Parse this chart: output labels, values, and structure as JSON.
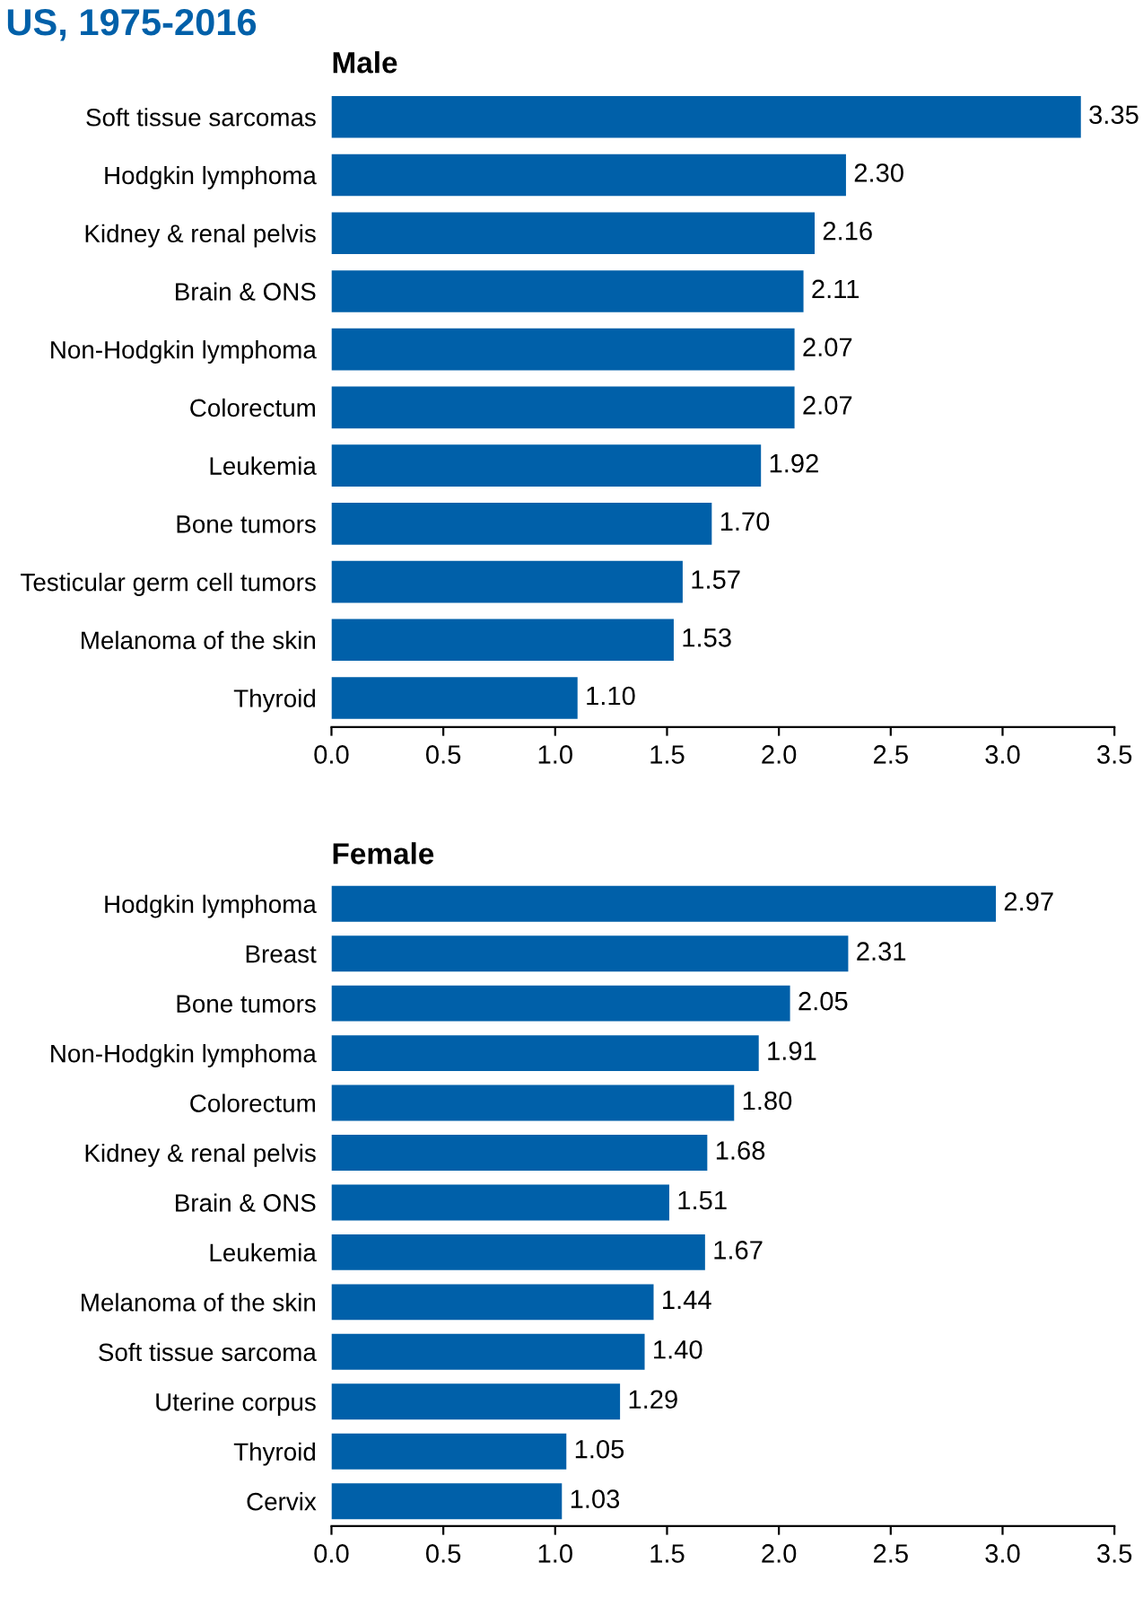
{
  "chart_data": [
    {
      "type": "bar",
      "orientation": "horizontal",
      "title": "US, 1975-2016",
      "subtitle": "Male",
      "categories": [
        "Soft tissue sarcomas",
        "Hodgkin lymphoma",
        "Kidney & renal pelvis",
        "Brain & ONS",
        "Non-Hodgkin lymphoma",
        "Colorectum",
        "Leukemia",
        "Bone tumors",
        "Testicular germ cell tumors",
        "Melanoma of the skin",
        "Thyroid"
      ],
      "values": [
        3.35,
        2.3,
        2.16,
        2.11,
        2.07,
        2.07,
        1.92,
        1.7,
        1.57,
        1.53,
        1.1
      ],
      "value_labels": [
        "3.35",
        "2.30",
        "2.16",
        "2.11",
        "2.07",
        "2.07",
        "1.92",
        "1.70",
        "1.57",
        "1.53",
        "1.10"
      ],
      "color": "#0060a9",
      "xlim": [
        0,
        3.5
      ],
      "xticks": [
        {
          "value": 0,
          "label": "0.0"
        },
        {
          "value": 0.5,
          "label": "0.5"
        },
        {
          "value": 1,
          "label": "1.0"
        },
        {
          "value": 1.5,
          "label": "1.5"
        },
        {
          "value": 2,
          "label": "2.0"
        },
        {
          "value": 2.5,
          "label": "2.5"
        },
        {
          "value": 3,
          "label": "3.0"
        },
        {
          "value": 3.5,
          "label": "3.5"
        }
      ],
      "grid": false,
      "legend": false
    },
    {
      "type": "bar",
      "orientation": "horizontal",
      "subtitle": "Female",
      "categories": [
        "Hodgkin lymphoma",
        "Breast",
        "Bone tumors",
        "Non-Hodgkin lymphoma",
        "Colorectum",
        "Kidney & renal pelvis",
        "Brain & ONS",
        "Leukemia",
        "Melanoma of the skin",
        "Soft tissue sarcoma",
        "Uterine corpus",
        "Thyroid",
        "Cervix"
      ],
      "values": [
        2.97,
        2.31,
        2.05,
        1.91,
        1.8,
        1.68,
        1.51,
        1.67,
        1.44,
        1.4,
        1.29,
        1.05,
        1.03
      ],
      "value_labels": [
        "2.97",
        "2.31",
        "2.05",
        "1.91",
        "1.80",
        "1.68",
        "1.51",
        "1.67",
        "1.44",
        "1.40",
        "1.29",
        "1.05",
        "1.03"
      ],
      "color": "#0060a9",
      "xlim": [
        0,
        3.5
      ],
      "xticks": [
        {
          "value": 0,
          "label": "0.0"
        },
        {
          "value": 0.5,
          "label": "0.5"
        },
        {
          "value": 1,
          "label": "1.0"
        },
        {
          "value": 1.5,
          "label": "1.5"
        },
        {
          "value": 2,
          "label": "2.0"
        },
        {
          "value": 2.5,
          "label": "2.5"
        },
        {
          "value": 3,
          "label": "3.0"
        },
        {
          "value": 3.5,
          "label": "3.5"
        }
      ],
      "grid": false,
      "legend": false
    }
  ]
}
